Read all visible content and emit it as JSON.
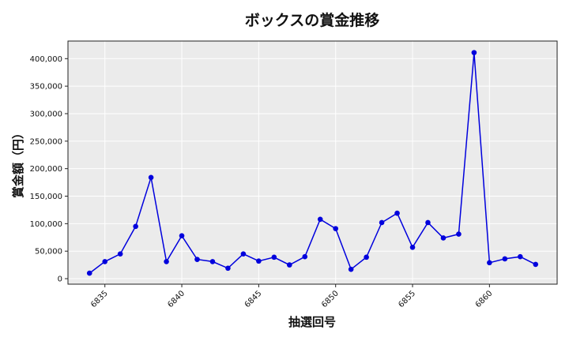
{
  "chart_data": {
    "type": "line",
    "title": "ボックスの賞金推移",
    "xlabel": "抽選回号",
    "ylabel": "賞金額（円）",
    "x_ticks": [
      6835,
      6840,
      6845,
      6850,
      6855,
      6860
    ],
    "y_ticks": [
      0,
      50000,
      100000,
      150000,
      200000,
      250000,
      300000,
      350000,
      400000
    ],
    "y_tick_labels": [
      "0",
      "50,000",
      "100,000",
      "150,000",
      "200,000",
      "250,000",
      "300,000",
      "350,000",
      "400,000"
    ],
    "xlim": [
      6832.6,
      6864.4
    ],
    "ylim": [
      -10000,
      432000
    ],
    "grid": true,
    "color": "#0000dd",
    "series": [
      {
        "x": [
          6834,
          6835,
          6836,
          6837,
          6838,
          6839,
          6840,
          6841,
          6842,
          6843,
          6844,
          6845,
          6846,
          6847,
          6848,
          6849,
          6850,
          6851,
          6852,
          6853,
          6854,
          6855,
          6856,
          6857,
          6858,
          6859,
          6860,
          6861,
          6862,
          6863
        ],
        "values": [
          10000,
          31000,
          45000,
          95000,
          184000,
          31000,
          78000,
          35000,
          31000,
          19000,
          45000,
          32000,
          39000,
          25000,
          40000,
          108000,
          91000,
          17000,
          39000,
          102000,
          119000,
          57000,
          102000,
          74000,
          81000,
          411000,
          29000,
          36000,
          40000,
          26000
        ]
      }
    ]
  }
}
